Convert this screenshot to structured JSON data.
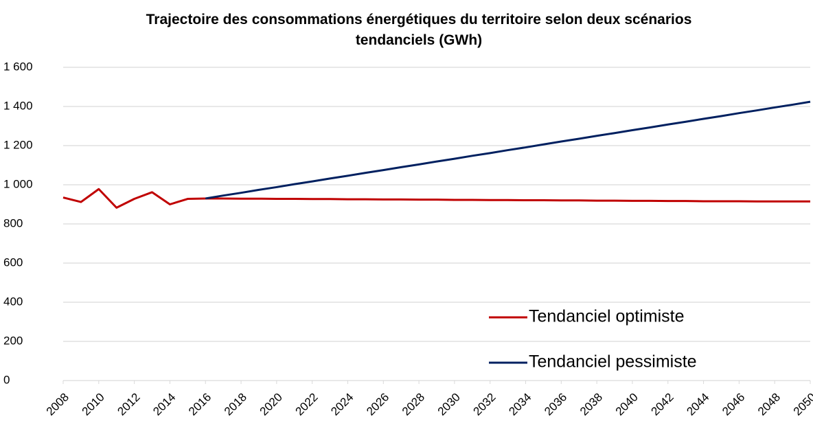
{
  "chart_data": {
    "type": "line",
    "title": "Trajectoire des consommations énergétiques du territoire selon deux scénarios tendanciels (GWh)",
    "x": [
      2008,
      2009,
      2010,
      2011,
      2012,
      2013,
      2014,
      2015,
      2016,
      2017,
      2018,
      2019,
      2020,
      2021,
      2022,
      2023,
      2024,
      2025,
      2026,
      2027,
      2028,
      2029,
      2030,
      2031,
      2032,
      2033,
      2034,
      2035,
      2036,
      2037,
      2038,
      2039,
      2040,
      2041,
      2042,
      2043,
      2044,
      2045,
      2046,
      2047,
      2048,
      2049,
      2050
    ],
    "xlim": [
      2008,
      2050
    ],
    "xticks": [
      2008,
      2010,
      2012,
      2014,
      2016,
      2018,
      2020,
      2022,
      2024,
      2026,
      2028,
      2030,
      2032,
      2034,
      2036,
      2038,
      2040,
      2042,
      2044,
      2046,
      2048,
      2050
    ],
    "ylim": [
      0,
      1600
    ],
    "yticks": [
      0,
      200,
      400,
      600,
      800,
      {
        "value": 1000,
        "label": "1 000"
      },
      {
        "value": 1200,
        "label": "1 200"
      },
      {
        "value": 1400,
        "label": "1 400"
      },
      {
        "value": 1600,
        "label": "1 600"
      }
    ],
    "grid": true,
    "legend": "lower right",
    "series": [
      {
        "name": "Tendanciel optimiste",
        "color": "#c00000",
        "values": [
          935,
          912,
          978,
          883,
          928,
          962,
          900,
          928,
          930,
          930,
          929,
          929,
          928,
          928,
          927,
          927,
          926,
          926,
          925,
          925,
          924,
          924,
          923,
          923,
          922,
          922,
          921,
          921,
          920,
          920,
          919,
          919,
          918,
          918,
          917,
          917,
          916,
          916,
          916,
          915,
          915,
          915,
          915
        ]
      },
      {
        "name": "Tendanciel pessimiste",
        "color": "#002060",
        "values": [
          null,
          null,
          null,
          null,
          null,
          null,
          null,
          null,
          930,
          945,
          959,
          974,
          988,
          1003,
          1017,
          1032,
          1046,
          1061,
          1075,
          1090,
          1104,
          1119,
          1133,
          1148,
          1162,
          1177,
          1191,
          1206,
          1221,
          1235,
          1250,
          1264,
          1279,
          1293,
          1308,
          1322,
          1337,
          1351,
          1366,
          1380,
          1395,
          1409,
          1424
        ]
      }
    ]
  }
}
